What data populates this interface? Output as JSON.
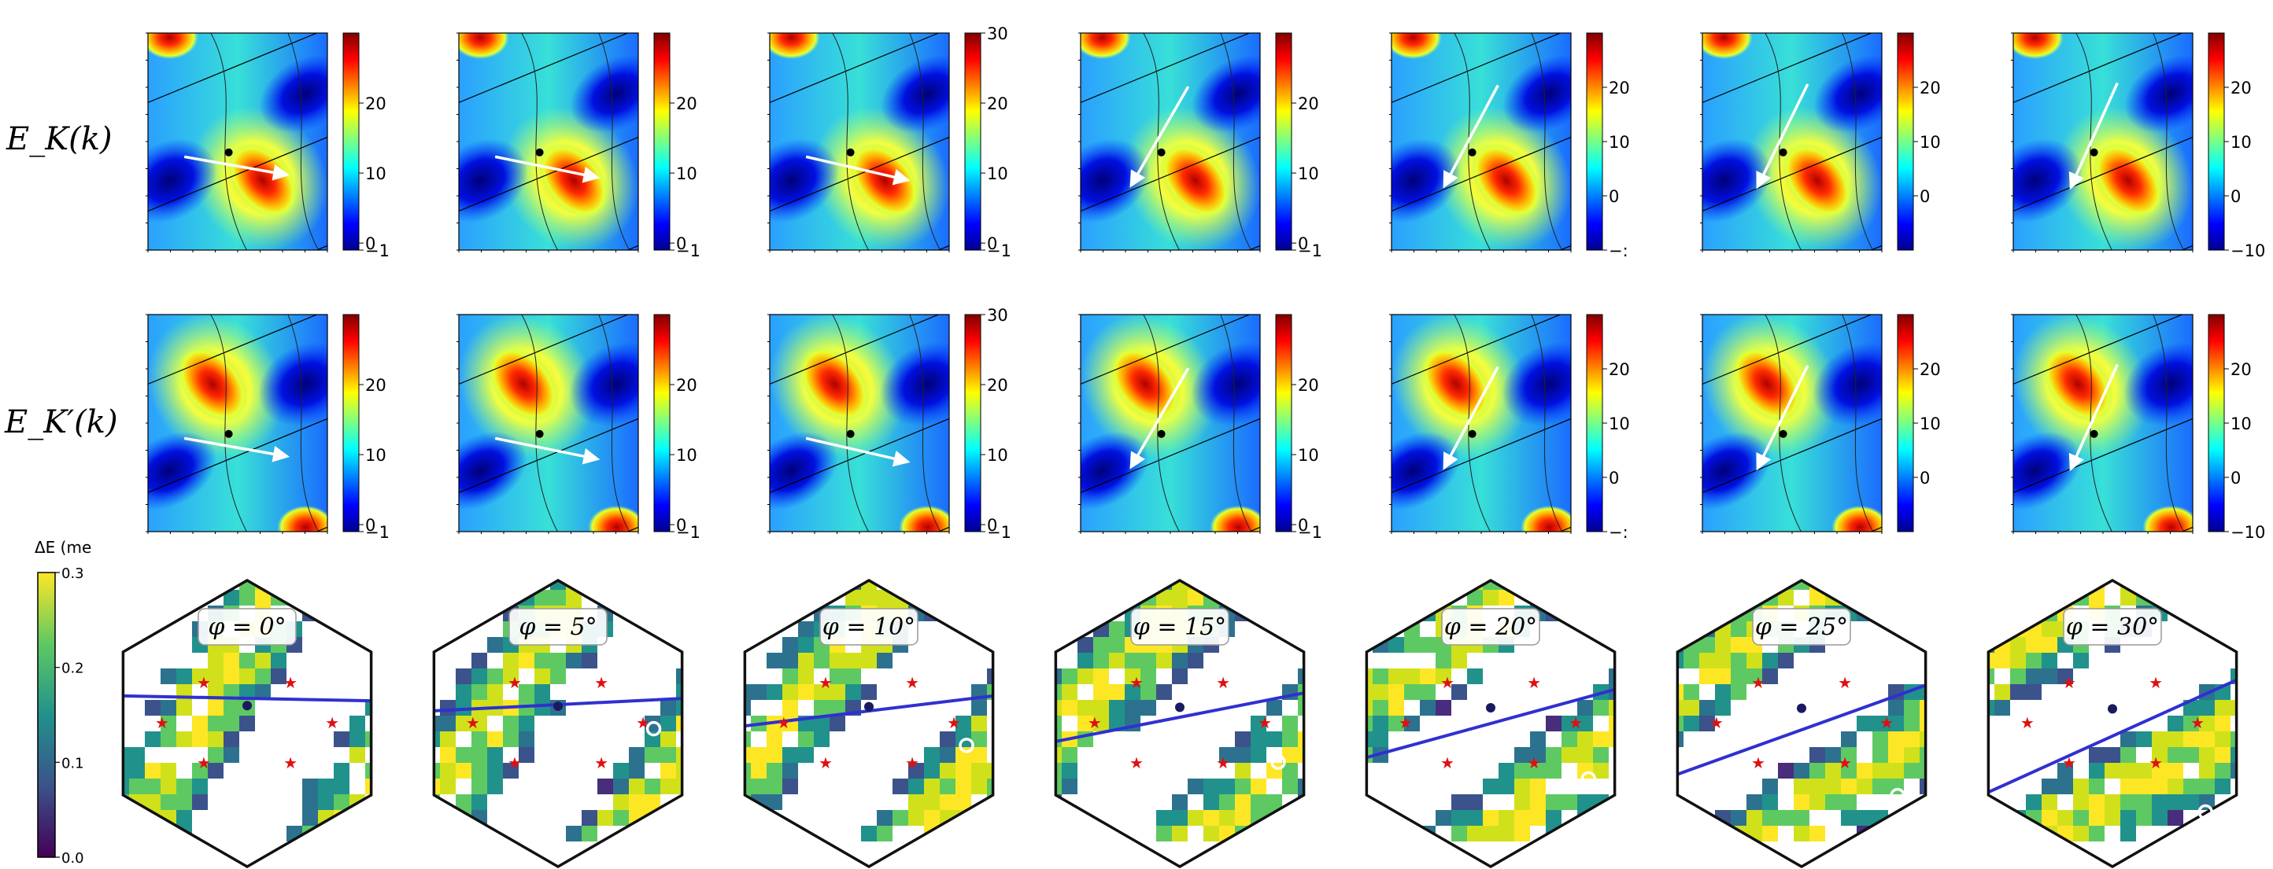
{
  "row_labels": {
    "top": "E_K(k)",
    "middle": "E_K′(k)"
  },
  "delta_e_colorbar": {
    "title": "ΔE (me",
    "ticks": [
      "0.3",
      "0.2",
      "0.1",
      "0.0"
    ],
    "range": [
      0.0,
      0.3
    ]
  },
  "colors": {
    "high": "#d40000",
    "low": "#00008b",
    "star": "#e01010",
    "line": "#3030d0"
  },
  "chart_data": {
    "type": "heatmap",
    "panels": [
      {
        "angle_label": "φ = 0°",
        "phi": 0,
        "colorbar_ticks": [
          "20",
          "10",
          "0",
          "−1"
        ],
        "energy_range": [
          -1,
          30
        ]
      },
      {
        "angle_label": "φ = 5°",
        "phi": 5,
        "colorbar_ticks": [
          "20",
          "10",
          "0",
          "−1"
        ],
        "energy_range": [
          -1,
          30
        ]
      },
      {
        "angle_label": "φ = 10°",
        "phi": 10,
        "colorbar_ticks": [
          "30",
          "20",
          "10",
          "0",
          "−1"
        ],
        "energy_range": [
          -1,
          30
        ]
      },
      {
        "angle_label": "φ = 15°",
        "phi": 15,
        "colorbar_ticks": [
          "20",
          "10",
          "0",
          "−1"
        ],
        "energy_range": [
          -1,
          30
        ]
      },
      {
        "angle_label": "φ = 20°",
        "phi": 20,
        "colorbar_ticks": [
          "20",
          "10",
          "0",
          "−:"
        ],
        "energy_range": [
          -10,
          30
        ]
      },
      {
        "angle_label": "φ = 25°",
        "phi": 25,
        "colorbar_ticks": [
          "20",
          "10",
          "0"
        ],
        "energy_range": [
          -10,
          30
        ]
      },
      {
        "angle_label": "φ = 30°",
        "phi": 30,
        "colorbar_ticks": [
          "20",
          "10",
          "0",
          "−10"
        ],
        "energy_range": [
          -10,
          30
        ]
      }
    ]
  }
}
